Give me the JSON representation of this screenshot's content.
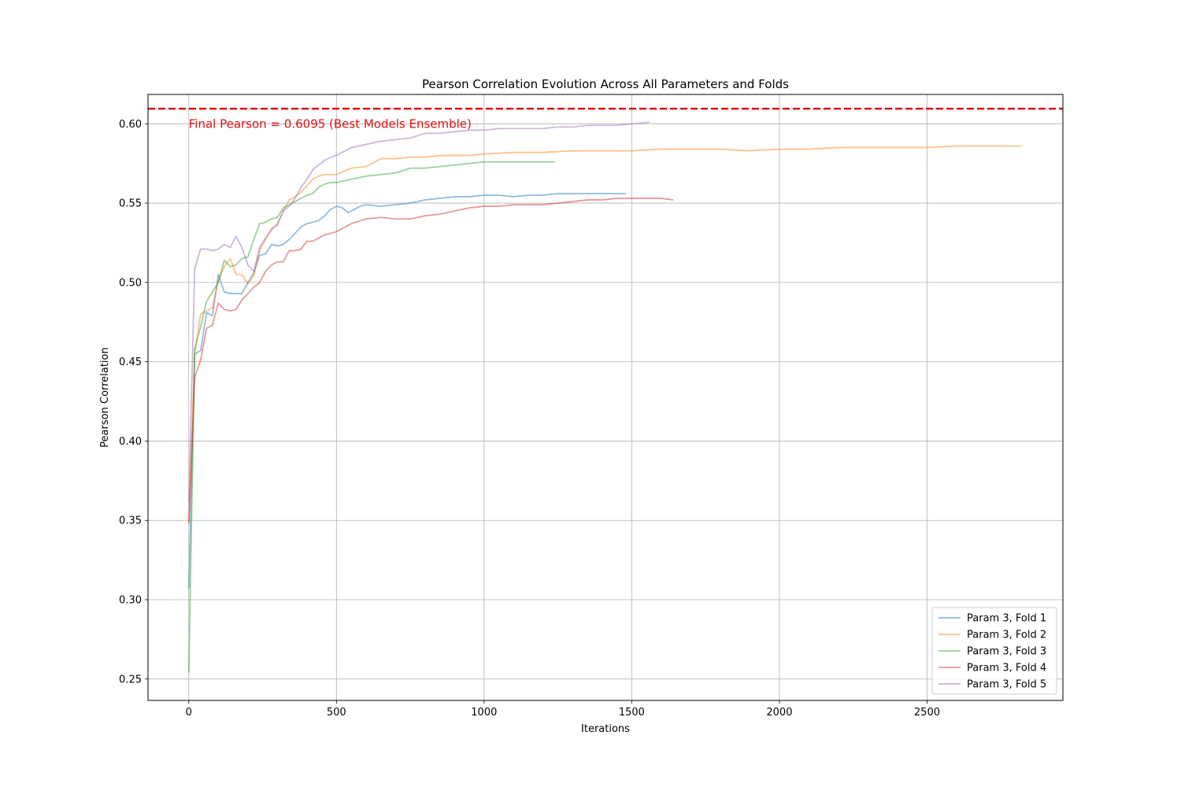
{
  "chart_data": {
    "type": "line",
    "title": "Pearson Correlation Evolution Across All Parameters and Folds",
    "xlabel": "Iterations",
    "ylabel": "Pearson Correlation",
    "xlim": [
      -138,
      2960
    ],
    "ylim": [
      0.2365,
      0.6185
    ],
    "xticks": [
      0,
      500,
      1000,
      1500,
      2000,
      2500
    ],
    "xtick_labels": [
      "0",
      "500",
      "1000",
      "1500",
      "2000",
      "2500"
    ],
    "yticks": [
      0.25,
      0.3,
      0.35,
      0.4,
      0.45,
      0.5,
      0.55,
      0.6
    ],
    "ytick_labels": [
      "0.25",
      "0.30",
      "0.35",
      "0.40",
      "0.45",
      "0.50",
      "0.55",
      "0.60"
    ],
    "grid": true,
    "legend_position": "lower-right",
    "reference_line": {
      "y": 0.6095,
      "color": "#e01010",
      "style": "dashed",
      "label": "Final Pearson = 0.6095 (Best Models Ensemble)"
    },
    "series": [
      {
        "name": "Param 3, Fold 1",
        "color": "#1f77b4",
        "x": [
          0,
          20,
          40,
          60,
          80,
          100,
          120,
          140,
          160,
          180,
          200,
          220,
          240,
          260,
          280,
          300,
          320,
          340,
          360,
          380,
          400,
          420,
          440,
          460,
          480,
          500,
          520,
          540,
          560,
          580,
          600,
          650,
          700,
          750,
          800,
          850,
          900,
          950,
          1000,
          1050,
          1100,
          1150,
          1200,
          1250,
          1300,
          1350,
          1400,
          1450,
          1480
        ],
        "y": [
          0.307,
          0.455,
          0.457,
          0.481,
          0.479,
          0.505,
          0.494,
          0.493,
          0.493,
          0.493,
          0.5,
          0.506,
          0.517,
          0.518,
          0.524,
          0.523,
          0.524,
          0.527,
          0.531,
          0.535,
          0.537,
          0.538,
          0.539,
          0.542,
          0.546,
          0.548,
          0.547,
          0.544,
          0.546,
          0.548,
          0.549,
          0.548,
          0.549,
          0.55,
          0.552,
          0.553,
          0.554,
          0.554,
          0.555,
          0.555,
          0.554,
          0.555,
          0.555,
          0.556,
          0.556,
          0.556,
          0.556,
          0.556,
          0.556
        ]
      },
      {
        "name": "Param 3, Fold 2",
        "color": "#ff7f0e",
        "x": [
          0,
          20,
          40,
          60,
          80,
          100,
          120,
          140,
          160,
          180,
          200,
          220,
          240,
          260,
          280,
          300,
          320,
          340,
          360,
          380,
          400,
          420,
          440,
          460,
          480,
          500,
          550,
          600,
          650,
          700,
          750,
          800,
          850,
          900,
          950,
          1000,
          1100,
          1200,
          1300,
          1400,
          1500,
          1600,
          1700,
          1800,
          1900,
          2000,
          2100,
          2200,
          2300,
          2400,
          2500,
          2600,
          2700,
          2820
        ],
        "y": [
          0.349,
          0.455,
          0.48,
          0.482,
          0.484,
          0.501,
          0.51,
          0.515,
          0.505,
          0.505,
          0.499,
          0.504,
          0.52,
          0.527,
          0.534,
          0.536,
          0.545,
          0.552,
          0.554,
          0.557,
          0.561,
          0.565,
          0.567,
          0.568,
          0.568,
          0.568,
          0.572,
          0.573,
          0.578,
          0.578,
          0.579,
          0.579,
          0.58,
          0.58,
          0.58,
          0.581,
          0.582,
          0.582,
          0.583,
          0.583,
          0.583,
          0.584,
          0.584,
          0.584,
          0.583,
          0.584,
          0.584,
          0.585,
          0.585,
          0.585,
          0.585,
          0.586,
          0.586,
          0.586
        ]
      },
      {
        "name": "Param 3, Fold 3",
        "color": "#2ca02c",
        "x": [
          0,
          20,
          40,
          60,
          80,
          100,
          120,
          140,
          160,
          180,
          200,
          220,
          240,
          260,
          280,
          300,
          320,
          340,
          360,
          380,
          400,
          420,
          440,
          460,
          480,
          500,
          550,
          600,
          650,
          700,
          750,
          800,
          850,
          900,
          950,
          1000,
          1050,
          1100,
          1150,
          1200,
          1240
        ],
        "y": [
          0.254,
          0.458,
          0.472,
          0.488,
          0.494,
          0.5,
          0.514,
          0.51,
          0.511,
          0.515,
          0.516,
          0.527,
          0.537,
          0.538,
          0.54,
          0.541,
          0.547,
          0.549,
          0.551,
          0.553,
          0.555,
          0.556,
          0.56,
          0.562,
          0.563,
          0.563,
          0.565,
          0.567,
          0.568,
          0.569,
          0.572,
          0.572,
          0.573,
          0.574,
          0.575,
          0.576,
          0.576,
          0.576,
          0.576,
          0.576,
          0.576
        ]
      },
      {
        "name": "Param 3, Fold 4",
        "color": "#d62728",
        "x": [
          0,
          20,
          40,
          60,
          80,
          100,
          120,
          140,
          160,
          180,
          200,
          220,
          240,
          260,
          280,
          300,
          320,
          340,
          360,
          380,
          400,
          420,
          440,
          460,
          480,
          500,
          550,
          600,
          650,
          700,
          750,
          800,
          850,
          900,
          950,
          1000,
          1050,
          1100,
          1150,
          1200,
          1250,
          1300,
          1350,
          1400,
          1450,
          1500,
          1550,
          1600,
          1640
        ],
        "y": [
          0.348,
          0.44,
          0.451,
          0.471,
          0.473,
          0.487,
          0.483,
          0.482,
          0.483,
          0.489,
          0.493,
          0.497,
          0.5,
          0.507,
          0.511,
          0.513,
          0.513,
          0.52,
          0.52,
          0.521,
          0.526,
          0.526,
          0.528,
          0.53,
          0.531,
          0.532,
          0.537,
          0.54,
          0.541,
          0.54,
          0.54,
          0.542,
          0.543,
          0.545,
          0.547,
          0.548,
          0.548,
          0.549,
          0.549,
          0.549,
          0.55,
          0.551,
          0.552,
          0.552,
          0.553,
          0.553,
          0.553,
          0.553,
          0.552
        ]
      },
      {
        "name": "Param 3, Fold 5",
        "color": "#9467bd",
        "x": [
          0,
          20,
          40,
          60,
          80,
          100,
          120,
          140,
          160,
          180,
          200,
          220,
          240,
          260,
          280,
          300,
          320,
          340,
          360,
          380,
          400,
          420,
          440,
          460,
          480,
          500,
          550,
          600,
          650,
          700,
          750,
          800,
          850,
          900,
          950,
          1000,
          1050,
          1100,
          1150,
          1200,
          1250,
          1300,
          1350,
          1400,
          1450,
          1500,
          1560
        ],
        "y": [
          0.361,
          0.509,
          0.521,
          0.521,
          0.52,
          0.521,
          0.524,
          0.522,
          0.529,
          0.522,
          0.511,
          0.507,
          0.522,
          0.528,
          0.533,
          0.537,
          0.545,
          0.548,
          0.553,
          0.56,
          0.565,
          0.571,
          0.574,
          0.577,
          0.579,
          0.58,
          0.585,
          0.587,
          0.589,
          0.59,
          0.591,
          0.594,
          0.594,
          0.595,
          0.596,
          0.596,
          0.597,
          0.597,
          0.597,
          0.597,
          0.598,
          0.598,
          0.599,
          0.599,
          0.599,
          0.6,
          0.601
        ]
      }
    ]
  }
}
